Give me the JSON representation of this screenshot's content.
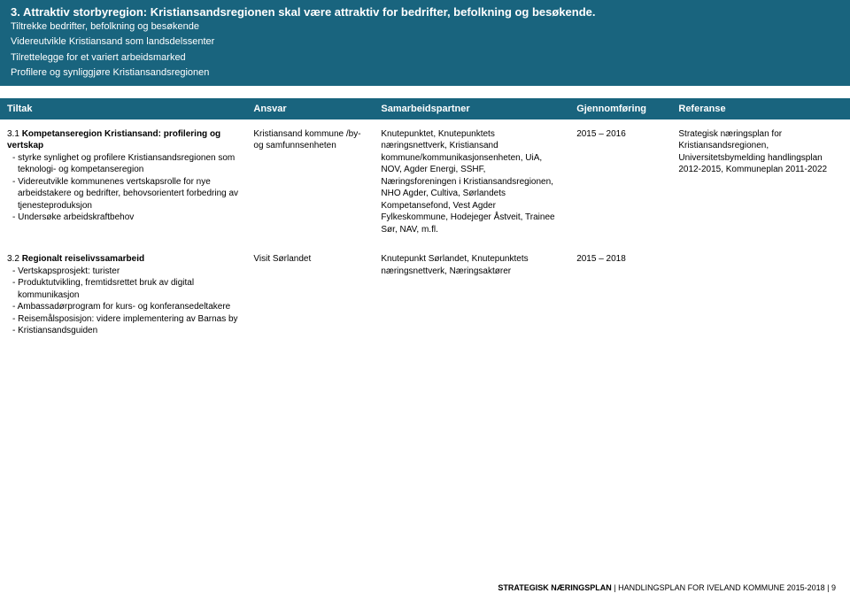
{
  "header": {
    "title": "3. Attraktiv storbyregion: Kristiansandsregionen skal være attraktiv for bedrifter, befolkning og besøkende.",
    "sub_lines": [
      "Tiltrekke bedrifter, befolkning og besøkende",
      "Videreutvikle Kristiansand som landsdelssenter",
      "Tilrettelegge for et variert arbeidsmarked",
      "Profilere og synliggjøre Kristiansandsregionen"
    ]
  },
  "columns": {
    "tiltak": "Tiltak",
    "ansvar": "Ansvar",
    "samarbeid": "Samarbeidspartner",
    "gjennom": "Gjennomføring",
    "referanse": "Referanse"
  },
  "rows": [
    {
      "id": "3.1",
      "tiltak_title": "Kompetanseregion Kristiansand: profilering og vertskap",
      "tiltak_bullets": [
        "styrke synlighet og profilere Kristiansandsregionen som teknologi- og kompetanseregion",
        "Videreutvikle kommunenes vertskapsrolle for nye arbeidstakere og bedrifter, behovsorientert forbedring av tjenesteproduksjon",
        "Undersøke arbeidskraftbehov"
      ],
      "ansvar": "Kristiansand kommune /by- og samfunnsenheten",
      "partner": "Knutepunktet, Knutepunktets næringsnettverk, Kristiansand kommune/kommunikasjonsenheten, UiA, NOV, Agder Energi, SSHF, Næringsforeningen i Kristiansandsregionen, NHO Agder, Cultiva, Sørlandets Kompetansefond, Vest Agder Fylkeskommune, Hodejeger Åstveit, Trainee Sør, NAV, m.fl.",
      "gjennom": "2015 – 2016",
      "referanse": "Strategisk næringsplan for Kristiansandsregionen, Universitetsbymelding handlingsplan 2012-2015, Kommuneplan 2011-2022"
    },
    {
      "id": "3.2",
      "tiltak_title": "Regionalt reiselivssamarbeid",
      "tiltak_bullets": [
        "Vertskapsprosjekt: turister",
        "Produktutvikling, fremtidsrettet bruk av digital kommunikasjon",
        "Ambassadørprogram for kurs- og konferansedeltakere",
        "Reisemålsposisjon: videre implementering av Barnas by",
        "Kristiansandsguiden"
      ],
      "ansvar": "Visit Sørlandet",
      "partner": "Knutepunkt Sørlandet, Knutepunktets næringsnettverk, Næringsaktører",
      "gjennom": "2015 – 2018",
      "referanse": ""
    }
  ],
  "footer": {
    "bold": "STRATEGISK NÆRINGSPLAN",
    "sep": " |  ",
    "rest": "HANDLINGSPLAN FOR IVELAND KOMMUNE 2015-2018  |  9"
  },
  "style": {
    "band_bg": "#19647e",
    "band_fg": "#ffffff",
    "title_fontsize_pt": 13,
    "sub_fontsize_pt": 11,
    "th_fontsize_pt": 11,
    "td_fontsize_pt": 10,
    "footer_fontsize_pt": 9,
    "col_widths_pct": [
      29,
      15,
      23,
      12,
      21
    ]
  }
}
